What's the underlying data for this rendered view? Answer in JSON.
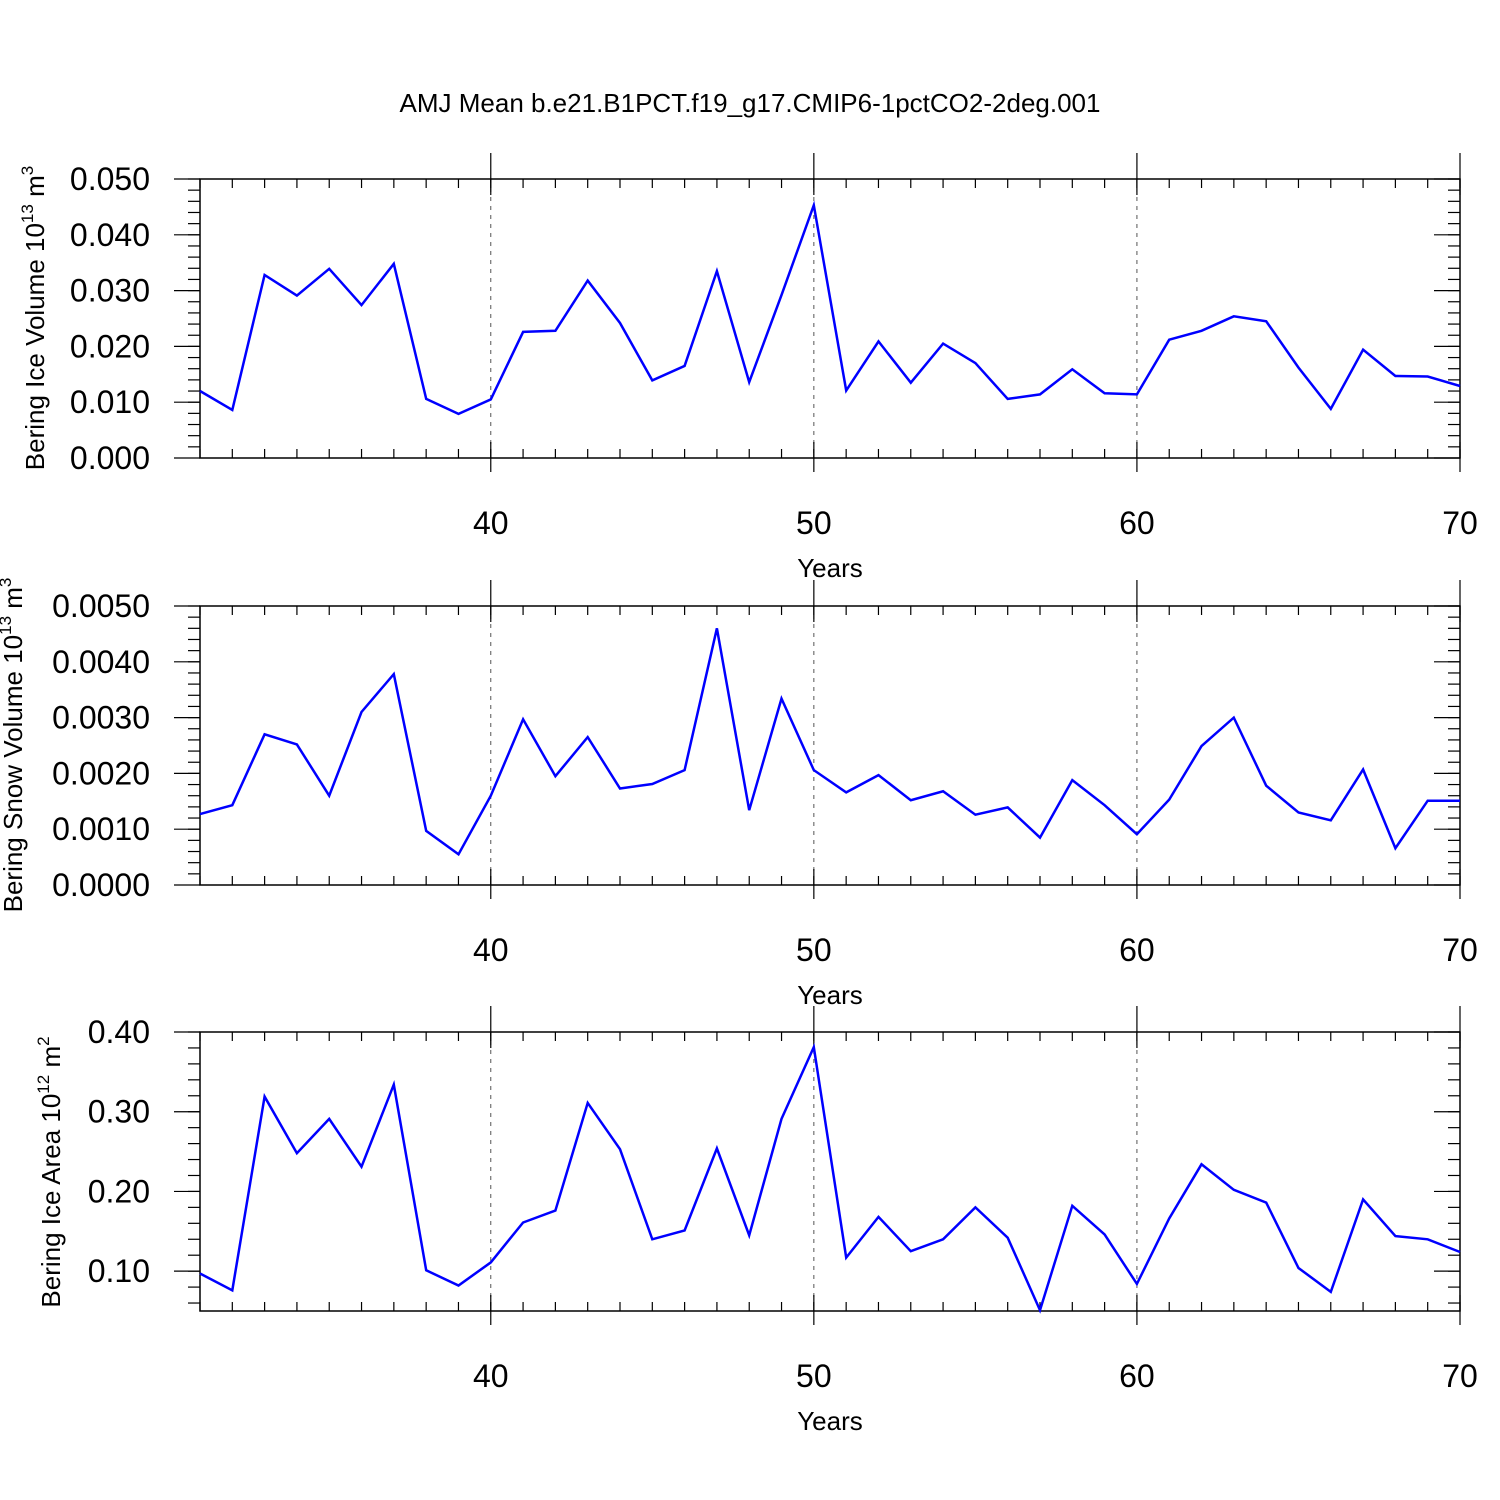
{
  "figure": {
    "title": "AMJ Mean b.e21.B1PCT.f19_g17.CMIP6-1pctCO2-2deg.001",
    "line_color": "#0000ff"
  },
  "chart_data": [
    {
      "type": "line",
      "ylabel": "Bering Ice Volume 10",
      "ylabel_exp": "13",
      "ylabel_unit": " m",
      "ylabel_unit_exp": "3",
      "xlabel": "Years",
      "xlim": [
        31,
        70
      ],
      "ylim": [
        0.0,
        0.05
      ],
      "grid_x": [
        40,
        50,
        60
      ],
      "x_ticks": [
        40,
        50,
        60,
        70
      ],
      "x_tick_labels": [
        "40",
        "50",
        "60",
        "70"
      ],
      "y_ticks": [
        0.0,
        0.01,
        0.02,
        0.03,
        0.04,
        0.05
      ],
      "y_tick_labels": [
        "0.000",
        "0.010",
        "0.020",
        "0.030",
        "0.040",
        "0.050"
      ],
      "x": [
        31,
        32,
        33,
        34,
        35,
        36,
        37,
        38,
        39,
        40,
        41,
        42,
        43,
        44,
        45,
        46,
        47,
        48,
        49,
        50,
        51,
        52,
        53,
        54,
        55,
        56,
        57,
        58,
        59,
        60,
        61,
        62,
        63,
        64,
        65,
        66,
        67,
        68,
        69,
        70
      ],
      "y": [
        0.012,
        0.0086,
        0.0328,
        0.0291,
        0.0339,
        0.0274,
        0.0348,
        0.0106,
        0.0079,
        0.0105,
        0.0226,
        0.0228,
        0.0318,
        0.0242,
        0.0139,
        0.0165,
        0.0335,
        0.0136,
        0.0292,
        0.0453,
        0.0121,
        0.0209,
        0.0135,
        0.0205,
        0.017,
        0.0106,
        0.0114,
        0.0159,
        0.0116,
        0.0114,
        0.0212,
        0.0228,
        0.0254,
        0.0245,
        0.0162,
        0.0088,
        0.0194,
        0.0147,
        0.0146,
        0.0129
      ]
    },
    {
      "type": "line",
      "ylabel": "Bering Snow Volume 10",
      "ylabel_exp": "13",
      "ylabel_unit": " m",
      "ylabel_unit_exp": "3",
      "xlabel": "Years",
      "xlim": [
        31,
        70
      ],
      "ylim": [
        0.0,
        0.005
      ],
      "grid_x": [
        40,
        50,
        60
      ],
      "x_ticks": [
        40,
        50,
        60,
        70
      ],
      "x_tick_labels": [
        "40",
        "50",
        "60",
        "70"
      ],
      "y_ticks": [
        0.0,
        0.001,
        0.002,
        0.003,
        0.004,
        0.005
      ],
      "y_tick_labels": [
        "0.0000",
        "0.0010",
        "0.0020",
        "0.0030",
        "0.0040",
        "0.0050"
      ],
      "x": [
        31,
        32,
        33,
        34,
        35,
        36,
        37,
        38,
        39,
        40,
        41,
        42,
        43,
        44,
        45,
        46,
        47,
        48,
        49,
        50,
        51,
        52,
        53,
        54,
        55,
        56,
        57,
        58,
        59,
        60,
        61,
        62,
        63,
        64,
        65,
        66,
        67,
        68,
        69,
        70
      ],
      "y": [
        0.00127,
        0.00143,
        0.0027,
        0.00252,
        0.0016,
        0.0031,
        0.00378,
        0.00097,
        0.00055,
        0.0016,
        0.00297,
        0.00195,
        0.00265,
        0.00173,
        0.00181,
        0.00206,
        0.0046,
        0.00134,
        0.00334,
        0.00206,
        0.00166,
        0.00197,
        0.00152,
        0.00168,
        0.00126,
        0.00139,
        0.00085,
        0.00188,
        0.00143,
        0.00091,
        0.00153,
        0.00249,
        0.003,
        0.00178,
        0.0013,
        0.00116,
        0.00207,
        0.00066,
        0.00151,
        0.00151
      ]
    },
    {
      "type": "line",
      "ylabel": "Bering Ice Area 10",
      "ylabel_exp": "12",
      "ylabel_unit": " m",
      "ylabel_unit_exp": "2",
      "xlabel": "Years",
      "xlim": [
        31,
        70
      ],
      "ylim": [
        0.05,
        0.4
      ],
      "grid_x": [
        40,
        50,
        60
      ],
      "x_ticks": [
        40,
        50,
        60,
        70
      ],
      "x_tick_labels": [
        "40",
        "50",
        "60",
        "70"
      ],
      "y_ticks": [
        0.1,
        0.2,
        0.3,
        0.4
      ],
      "y_tick_labels": [
        "0.10",
        "0.20",
        "0.30",
        "0.40"
      ],
      "x": [
        31,
        32,
        33,
        34,
        35,
        36,
        37,
        38,
        39,
        40,
        41,
        42,
        43,
        44,
        45,
        46,
        47,
        48,
        49,
        50,
        51,
        52,
        53,
        54,
        55,
        56,
        57,
        58,
        59,
        60,
        61,
        62,
        63,
        64,
        65,
        66,
        67,
        68,
        69,
        70
      ],
      "y": [
        0.097,
        0.076,
        0.319,
        0.248,
        0.291,
        0.231,
        0.334,
        0.101,
        0.082,
        0.111,
        0.161,
        0.176,
        0.311,
        0.253,
        0.14,
        0.151,
        0.254,
        0.145,
        0.291,
        0.381,
        0.117,
        0.168,
        0.125,
        0.14,
        0.18,
        0.142,
        0.051,
        0.182,
        0.146,
        0.084,
        0.166,
        0.234,
        0.202,
        0.186,
        0.104,
        0.074,
        0.19,
        0.144,
        0.14,
        0.124
      ]
    }
  ]
}
